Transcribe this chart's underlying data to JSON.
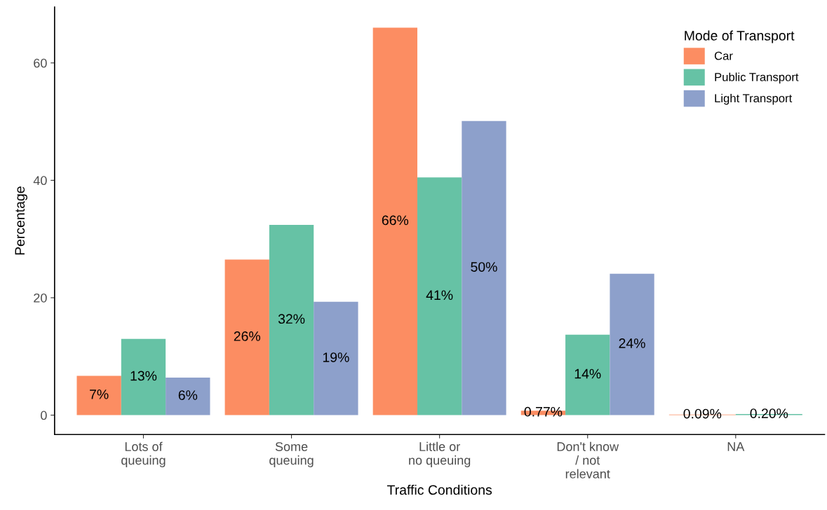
{
  "chart_data": {
    "type": "bar",
    "xlabel": "Traffic Conditions",
    "ylabel": "Percentage",
    "legend_title": "Mode of Transport",
    "categories": [
      "Lots of\nqueuing",
      "Some\nqueuing",
      "Little or\nno queuing",
      "Don't know\n/ not\nrelevant",
      "NA"
    ],
    "series": [
      {
        "name": "Car",
        "color": "#fc8d62",
        "values": [
          6.7,
          26.5,
          66.0,
          0.77,
          0.09
        ],
        "value_labels": [
          "7%",
          "26%",
          "66%",
          "0.77%",
          "0.09%"
        ]
      },
      {
        "name": "Public Transport",
        "color": "#66c2a5",
        "values": [
          13.0,
          32.4,
          40.5,
          13.7,
          0.2
        ],
        "value_labels": [
          "13%",
          "32%",
          "41%",
          "14%",
          "0.20%"
        ]
      },
      {
        "name": "Light Transport",
        "color": "#8da0cb",
        "values": [
          6.4,
          19.3,
          50.1,
          24.1,
          null
        ],
        "value_labels": [
          "6%",
          "19%",
          "50%",
          "24%",
          null
        ]
      }
    ],
    "ylim": [
      -3.3,
      69.5
    ],
    "yticks": [
      0,
      20,
      40,
      60
    ],
    "grid": false,
    "legend": "top right"
  }
}
